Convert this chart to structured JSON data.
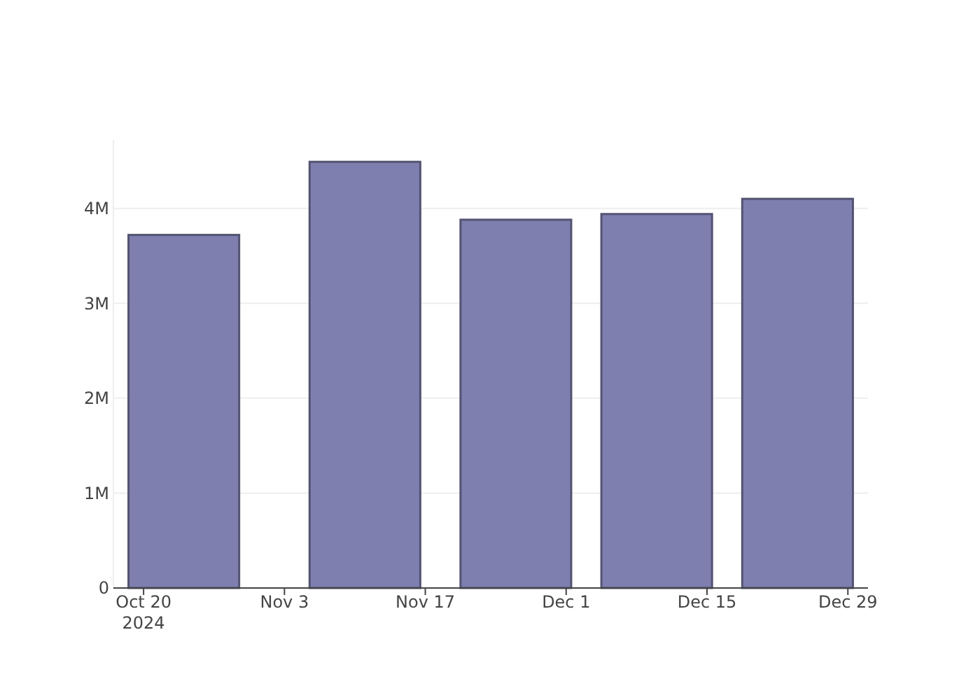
{
  "chart_data": {
    "type": "bar",
    "x": [
      "2024-10-24",
      "2024-11-11",
      "2024-11-26",
      "2024-12-10",
      "2024-12-24"
    ],
    "values": [
      3720000,
      4490000,
      3880000,
      3940000,
      4100000
    ],
    "color": "#7f7faf",
    "xlim": [
      "2024-10-17",
      "2024-12-31"
    ],
    "xticks": [
      {
        "value": "2024-10-20",
        "label": "Oct 20\n2024"
      },
      {
        "value": "2024-11-03",
        "label": "Nov 3"
      },
      {
        "value": "2024-11-17",
        "label": "Nov 17"
      },
      {
        "value": "2024-12-01",
        "label": "Dec 1"
      },
      {
        "value": "2024-12-15",
        "label": "Dec 15"
      },
      {
        "value": "2024-12-29",
        "label": "Dec 29"
      }
    ],
    "ylim": [
      0,
      4720000
    ],
    "yticks": [
      0,
      {
        "value": 1000000,
        "label": "1M"
      },
      {
        "value": 2000000,
        "label": "2M"
      },
      {
        "value": 3000000,
        "label": "3M"
      },
      {
        "value": 4000000,
        "label": "4M"
      }
    ],
    "grid": "y"
  }
}
